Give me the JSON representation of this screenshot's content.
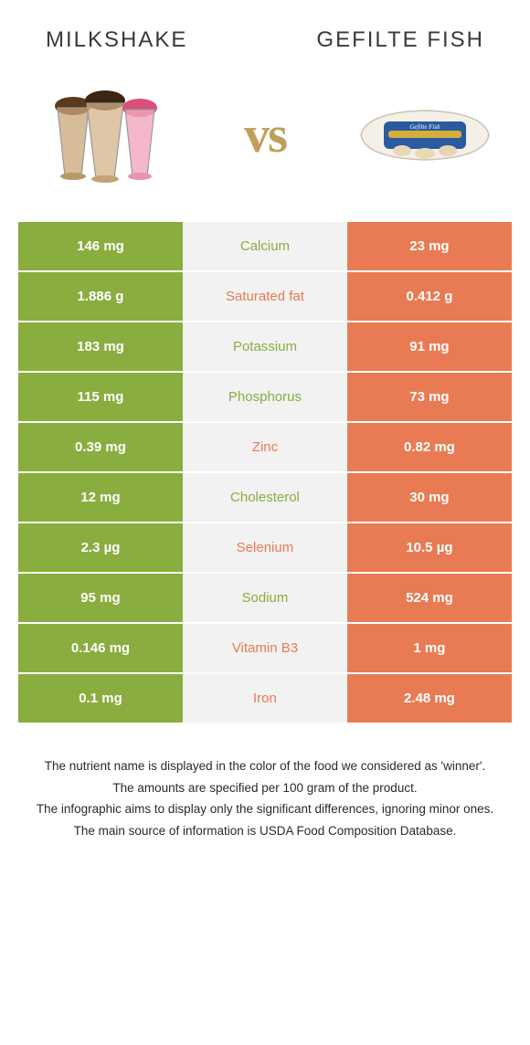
{
  "header": {
    "left_title": "Milkshake",
    "right_title": "Gefilte fish",
    "vs": "vs"
  },
  "colors": {
    "left_bg": "#8aad3f",
    "right_bg": "#e87b53",
    "mid_bg": "#f2f2f2",
    "title_color": "#3a3a3a",
    "vs_color": "#bfa05a"
  },
  "rows": [
    {
      "left": "146 mg",
      "mid": "Calcium",
      "right": "23 mg",
      "winner": "left"
    },
    {
      "left": "1.886 g",
      "mid": "Saturated fat",
      "right": "0.412 g",
      "winner": "right"
    },
    {
      "left": "183 mg",
      "mid": "Potassium",
      "right": "91 mg",
      "winner": "left"
    },
    {
      "left": "115 mg",
      "mid": "Phosphorus",
      "right": "73 mg",
      "winner": "left"
    },
    {
      "left": "0.39 mg",
      "mid": "Zinc",
      "right": "0.82 mg",
      "winner": "right"
    },
    {
      "left": "12 mg",
      "mid": "Cholesterol",
      "right": "30 mg",
      "winner": "left"
    },
    {
      "left": "2.3 µg",
      "mid": "Selenium",
      "right": "10.5 µg",
      "winner": "right"
    },
    {
      "left": "95 mg",
      "mid": "Sodium",
      "right": "524 mg",
      "winner": "left"
    },
    {
      "left": "0.146 mg",
      "mid": "Vitamin B3",
      "right": "1 mg",
      "winner": "right"
    },
    {
      "left": "0.1 mg",
      "mid": "Iron",
      "right": "2.48 mg",
      "winner": "right"
    }
  ],
  "footer": [
    "The nutrient name is displayed in the color of the food we considered as 'winner'.",
    "The amounts are specified per 100 gram of the product.",
    "The infographic aims to display only the significant differences, ignoring minor ones.",
    "The main source of information is USDA Food Composition Database."
  ]
}
